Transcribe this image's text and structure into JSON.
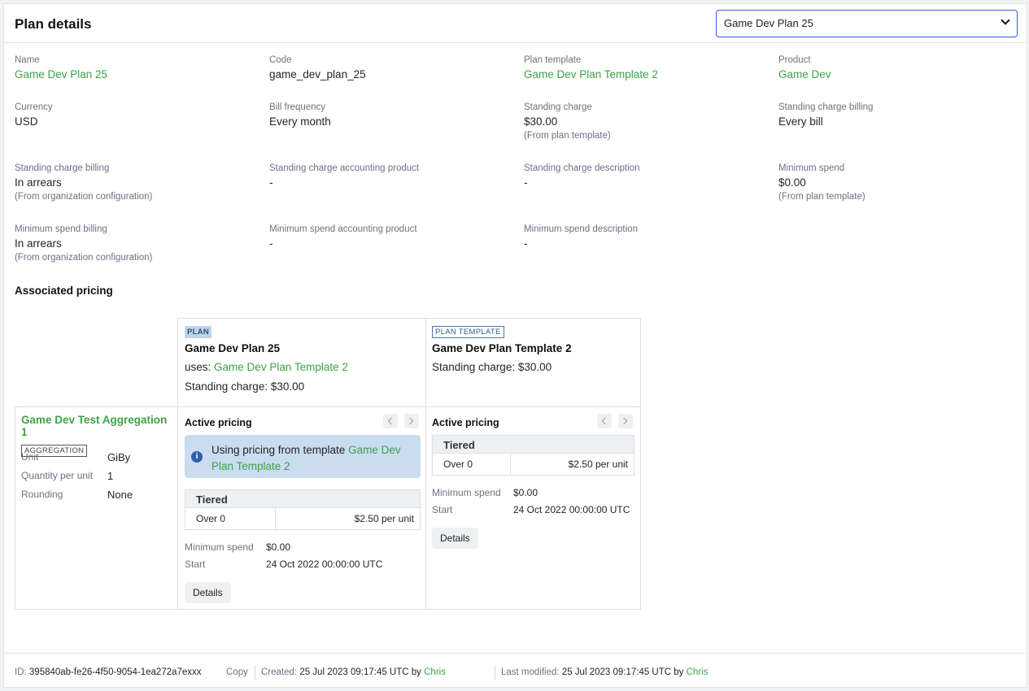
{
  "header": {
    "title": "Plan details",
    "plan_select": "Game Dev Plan 25"
  },
  "fields": {
    "name": {
      "label": "Name",
      "value": "Game Dev Plan 25"
    },
    "code": {
      "label": "Code",
      "value": "game_dev_plan_25"
    },
    "plan_template": {
      "label": "Plan template",
      "value": "Game Dev Plan Template 2"
    },
    "product": {
      "label": "Product",
      "value": "Game Dev"
    },
    "currency": {
      "label": "Currency",
      "value": "USD"
    },
    "bill_frequency": {
      "label": "Bill frequency",
      "value": "Every month"
    },
    "standing_charge": {
      "label": "Standing charge",
      "value": "$30.00",
      "note": "(From plan template)"
    },
    "standing_charge_billing_1": {
      "label": "Standing charge billing",
      "value": "Every bill"
    },
    "standing_charge_billing_2": {
      "label": "Standing charge billing",
      "value": "In arrears",
      "note": "(From organization configuration)"
    },
    "standing_charge_accounting_product": {
      "label": "Standing charge accounting product",
      "value": "-"
    },
    "standing_charge_description": {
      "label": "Standing charge description",
      "value": "-"
    },
    "minimum_spend": {
      "label": "Minimum spend",
      "value": "$0.00",
      "note": "(From plan template)"
    },
    "minimum_spend_billing": {
      "label": "Minimum spend billing",
      "value": "In arrears",
      "note": "(From organization configuration)"
    },
    "minimum_spend_accounting_product": {
      "label": "Minimum spend accounting product",
      "value": "-"
    },
    "minimum_spend_description": {
      "label": "Minimum spend description",
      "value": "-"
    }
  },
  "pricing": {
    "section_title": "Associated pricing",
    "plan_col": {
      "tag": "PLAN",
      "name": "Game Dev Plan 25",
      "uses_label": "uses:",
      "uses_link": "Game Dev Plan Template 2",
      "standing_charge": "Standing charge: $30.00",
      "active_pricing": "Active pricing",
      "info_text": "Using pricing from template",
      "info_link": "Game Dev Plan Template 2",
      "tier_title": "Tiered",
      "tier_over": "Over 0",
      "tier_price": "$2.50 per unit",
      "min_spend_label": "Minimum spend",
      "min_spend_value": "$0.00",
      "start_label": "Start",
      "start_value": "24 Oct 2022 00:00:00 UTC",
      "details_button": "Details"
    },
    "template_col": {
      "tag": "PLAN TEMPLATE",
      "name": "Game Dev Plan Template 2",
      "standing_charge": "Standing charge: $30.00",
      "active_pricing": "Active pricing",
      "tier_title": "Tiered",
      "tier_over": "Over 0",
      "tier_price": "$2.50 per unit",
      "min_spend_label": "Minimum spend",
      "min_spend_value": "$0.00",
      "start_label": "Start",
      "start_value": "24 Oct 2022 00:00:00 UTC",
      "details_button": "Details"
    },
    "aggregation": {
      "name": "Game Dev Test Aggregation 1",
      "tag": "AGGREGATION",
      "unit_label": "Unit",
      "unit_value": "GiBy",
      "qty_label": "Quantity per unit",
      "qty_value": "1",
      "rounding_label": "Rounding",
      "rounding_value": "None"
    }
  },
  "footer": {
    "id_label": "ID:",
    "id_value": "395840ab-fe26-4f50-9054-1ea272a7exxx",
    "copy": "Copy",
    "created_label": "Created:",
    "created_value": "25 Jul 2023 09:17:45 UTC by",
    "created_by": "Chris",
    "modified_label": "Last modified:",
    "modified_value": "25 Jul 2023 09:17:45 UTC by",
    "modified_by": "Chris"
  },
  "colors": {
    "link": "#3da346",
    "accent_border": "#3b5bdb",
    "info_bg": "#c9dcf0"
  }
}
